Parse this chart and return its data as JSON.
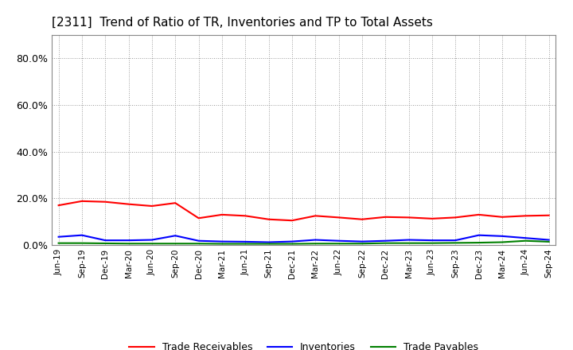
{
  "title": "[2311]  Trend of Ratio of TR, Inventories and TP to Total Assets",
  "x_labels": [
    "Jun-19",
    "Sep-19",
    "Dec-19",
    "Mar-20",
    "Jun-20",
    "Sep-20",
    "Dec-20",
    "Mar-21",
    "Jun-21",
    "Sep-21",
    "Dec-21",
    "Mar-22",
    "Jun-22",
    "Sep-22",
    "Dec-22",
    "Mar-23",
    "Jun-23",
    "Sep-23",
    "Dec-23",
    "Mar-24",
    "Jun-24",
    "Sep-24"
  ],
  "trade_receivables": [
    0.17,
    0.188,
    0.185,
    0.175,
    0.167,
    0.18,
    0.115,
    0.13,
    0.125,
    0.11,
    0.105,
    0.125,
    0.118,
    0.11,
    0.12,
    0.118,
    0.113,
    0.118,
    0.13,
    0.12,
    0.125,
    0.127
  ],
  "inventories": [
    0.035,
    0.042,
    0.02,
    0.02,
    0.022,
    0.04,
    0.018,
    0.015,
    0.014,
    0.012,
    0.015,
    0.022,
    0.018,
    0.015,
    0.018,
    0.022,
    0.02,
    0.02,
    0.042,
    0.038,
    0.03,
    0.022
  ],
  "trade_payables": [
    0.008,
    0.008,
    0.007,
    0.006,
    0.006,
    0.006,
    0.006,
    0.005,
    0.005,
    0.005,
    0.005,
    0.006,
    0.006,
    0.006,
    0.008,
    0.008,
    0.008,
    0.009,
    0.01,
    0.012,
    0.018,
    0.014
  ],
  "tr_color": "#FF0000",
  "inv_color": "#0000FF",
  "tp_color": "#008000",
  "ylim": [
    0.0,
    0.9
  ],
  "yticks": [
    0.0,
    0.2,
    0.4,
    0.6,
    0.8
  ],
  "legend_labels": [
    "Trade Receivables",
    "Inventories",
    "Trade Payables"
  ],
  "background_color": "#FFFFFF",
  "grid_color": "#999999"
}
